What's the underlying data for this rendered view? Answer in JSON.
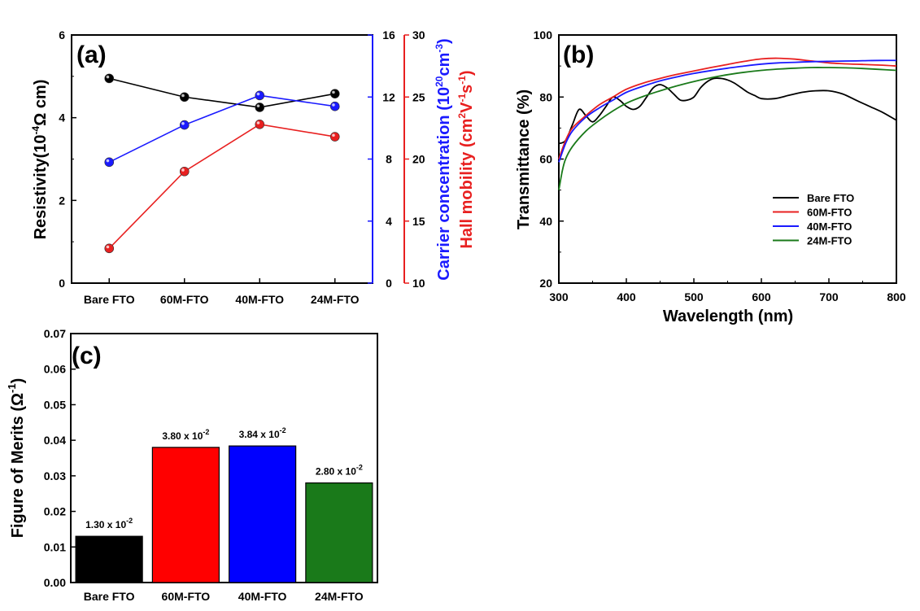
{
  "chart_data": [
    {
      "panel": "(a)",
      "type": "line",
      "categories": [
        "Bare FTO",
        "60M-FTO",
        "40M-FTO",
        "24M-FTO"
      ],
      "axes": {
        "y_left": {
          "label_main": "Resistivity(10",
          "label_sup": "-4",
          "label_tail": "Ω cm)",
          "lim": [
            0,
            6
          ],
          "ticks": [
            "0",
            "2",
            "4",
            "6"
          ],
          "color": "#000000"
        },
        "y_right1": {
          "label_main": "Carrier concentration (10",
          "label_sup1": "20",
          "label_mid": "cm",
          "label_sup2": "-3",
          "label_tail": ")",
          "lim": [
            0,
            16
          ],
          "ticks": [
            "0",
            "4",
            "8",
            "12",
            "16"
          ],
          "color": "#1a1aff"
        },
        "y_right2": {
          "label_main": "Hall mobility (cm",
          "label_sup1": "2",
          "label_mid1": "V",
          "label_sup2": "-1",
          "label_mid2": "s",
          "label_sup3": "-1",
          "label_tail": ")",
          "lim": [
            10,
            30
          ],
          "ticks": [
            "10",
            "15",
            "20",
            "25",
            "30"
          ],
          "color": "#e82020"
        }
      },
      "series": [
        {
          "name": "Resistivity",
          "axis": "y_left",
          "color": "#000000",
          "values": [
            4.95,
            4.5,
            4.25,
            4.58
          ]
        },
        {
          "name": "Carrier concentration",
          "axis": "y_right1",
          "color": "#1a1aff",
          "values": [
            7.8,
            10.2,
            12.1,
            11.4
          ]
        },
        {
          "name": "Hall mobility",
          "axis": "y_right2",
          "color": "#e82020",
          "values": [
            12.8,
            19.0,
            22.8,
            21.8
          ]
        }
      ]
    },
    {
      "panel": "(b)",
      "type": "line",
      "xlabel": "Wavelength (nm)",
      "ylabel": "Transmittance (%)",
      "xlim": [
        300,
        800
      ],
      "ylim": [
        20,
        100
      ],
      "xticks": [
        "300",
        "400",
        "500",
        "600",
        "700",
        "800"
      ],
      "yticks": [
        "20",
        "40",
        "60",
        "80",
        "100"
      ],
      "legend": {
        "position": "middle-right",
        "entries": [
          "Bare FTO",
          "60M-FTO",
          "40M-FTO",
          "24M-FTO"
        ]
      },
      "series": [
        {
          "name": "Bare FTO",
          "color": "#000000",
          "x": [
            300,
            310,
            320,
            330,
            340,
            350,
            360,
            370,
            380,
            390,
            400,
            410,
            420,
            430,
            440,
            450,
            460,
            470,
            480,
            490,
            500,
            510,
            520,
            530,
            540,
            550,
            560,
            570,
            580,
            590,
            600,
            620,
            640,
            660,
            680,
            700,
            720,
            740,
            760,
            780,
            800
          ],
          "y": [
            65,
            66,
            71,
            76,
            74,
            72,
            74,
            77,
            80,
            79,
            77,
            76,
            77,
            80,
            83,
            84,
            83,
            81,
            79,
            79,
            80,
            83,
            85,
            86,
            86,
            85.5,
            84.5,
            83,
            81.5,
            80.5,
            79.5,
            79.5,
            80.5,
            81.5,
            82,
            82,
            81,
            79,
            77,
            75,
            72.5
          ]
        },
        {
          "name": "60M-FTO",
          "color": "#e82020",
          "x": [
            300,
            310,
            320,
            340,
            360,
            380,
            400,
            425,
            450,
            475,
            500,
            525,
            550,
            575,
            600,
            625,
            650,
            675,
            700,
            725,
            750,
            775,
            800
          ],
          "y": [
            60,
            66,
            70,
            74,
            77.5,
            80,
            82.5,
            84.5,
            86,
            87.3,
            88.4,
            89.5,
            90.5,
            91.5,
            92.3,
            92.5,
            92.2,
            91.6,
            91,
            90.7,
            90.5,
            90.3,
            90
          ]
        },
        {
          "name": "40M-FTO",
          "color": "#1a1aff",
          "x": [
            300,
            310,
            320,
            340,
            360,
            380,
            400,
            425,
            450,
            475,
            500,
            525,
            550,
            575,
            600,
            625,
            650,
            675,
            700,
            725,
            750,
            775,
            800
          ],
          "y": [
            59,
            65,
            69,
            73.5,
            76.5,
            79,
            81.5,
            83.5,
            85.2,
            86.5,
            87.6,
            88.5,
            89.3,
            90,
            90.6,
            91,
            91.2,
            91.4,
            91.5,
            91.6,
            91.7,
            91.8,
            91.8
          ]
        },
        {
          "name": "24M-FTO",
          "color": "#1a7a1a",
          "x": [
            300,
            305,
            310,
            320,
            340,
            360,
            380,
            400,
            425,
            450,
            475,
            500,
            525,
            550,
            575,
            600,
            625,
            650,
            675,
            700,
            725,
            750,
            775,
            800
          ],
          "y": [
            50,
            56,
            60,
            64,
            69,
            72.5,
            75.5,
            78,
            80.2,
            82,
            83.6,
            85,
            86.2,
            87.2,
            88,
            88.6,
            89,
            89.3,
            89.5,
            89.5,
            89.4,
            89.2,
            88.9,
            88.6
          ]
        }
      ]
    },
    {
      "panel": "(c)",
      "type": "bar",
      "ylabel_main": "Figure of Merits (Ω",
      "ylabel_sup": "-1",
      "ylabel_tail": ")",
      "ylim": [
        0,
        0.07
      ],
      "yticks": [
        "0.00",
        "0.01",
        "0.02",
        "0.03",
        "0.04",
        "0.05",
        "0.06",
        "0.07"
      ],
      "categories": [
        "Bare FTO",
        "60M-FTO",
        "40M-FTO",
        "24M-FTO"
      ],
      "values": [
        0.013,
        0.038,
        0.0384,
        0.028
      ],
      "colors": [
        "#000000",
        "#ff0000",
        "#0000ff",
        "#1a7a1a"
      ],
      "data_labels": [
        {
          "mant": "1.30",
          "x": "x",
          "base": "10",
          "exp": "-2"
        },
        {
          "mant": "3.80",
          "x": "x",
          "base": "10",
          "exp": "-2"
        },
        {
          "mant": "3.84",
          "x": "x",
          "base": "10",
          "exp": "-2"
        },
        {
          "mant": "2.80",
          "x": "x",
          "base": "10",
          "exp": "-2"
        }
      ]
    }
  ]
}
